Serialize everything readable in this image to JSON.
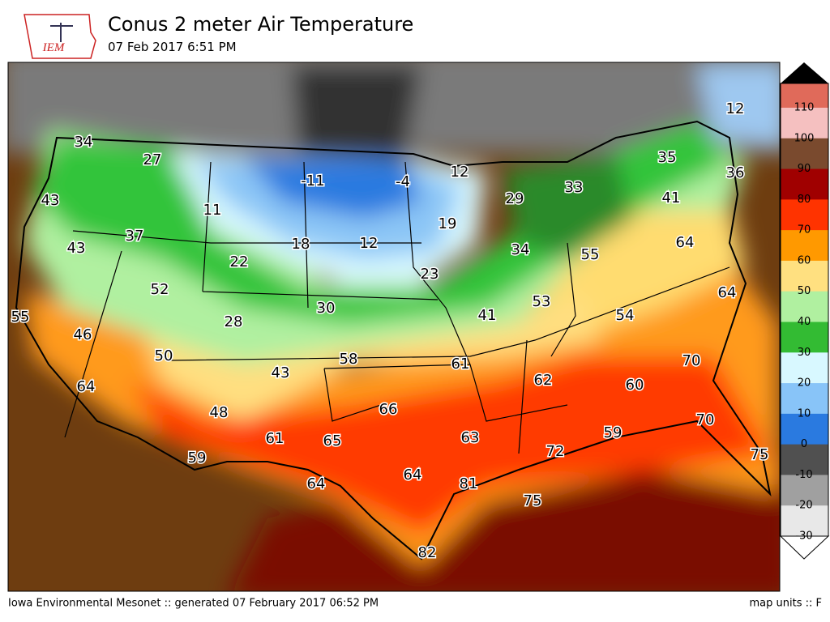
{
  "header": {
    "logo": "IEM",
    "title": "Conus 2 meter Air Temperature",
    "subtitle": "07 Feb 2017 6:51 PM"
  },
  "stations": [
    34,
    27,
    43,
    11,
    37,
    -11,
    -4,
    12,
    29,
    33,
    35,
    36,
    12,
    41,
    43,
    22,
    18,
    12,
    19,
    64,
    34,
    55,
    23,
    52,
    64,
    30,
    53,
    41,
    54,
    55,
    46,
    28,
    50,
    58,
    61,
    70,
    43,
    62,
    60,
    64,
    66,
    48,
    70,
    59,
    61,
    65,
    63,
    72,
    59,
    75,
    64,
    64,
    81,
    75,
    82
  ],
  "colorbar": {
    "ticks": [
      110,
      100,
      90,
      80,
      70,
      60,
      50,
      40,
      30,
      20,
      10,
      0,
      -10,
      -20,
      -30
    ],
    "colors": [
      "#e06a5a",
      "#f5c0c0",
      "#7a4a2e",
      "#a00000",
      "#ff3300",
      "#ff9900",
      "#ffe080",
      "#b0f0a0",
      "#33bb33",
      "#d8f8ff",
      "#88c4f8",
      "#2a7ae0",
      "#505050",
      "#a0a0a0",
      "#e8e8e8"
    ]
  },
  "footer": {
    "left": "Iowa Environmental Mesonet :: generated 07 February 2017 06:52 PM",
    "right": "map units :: F"
  }
}
